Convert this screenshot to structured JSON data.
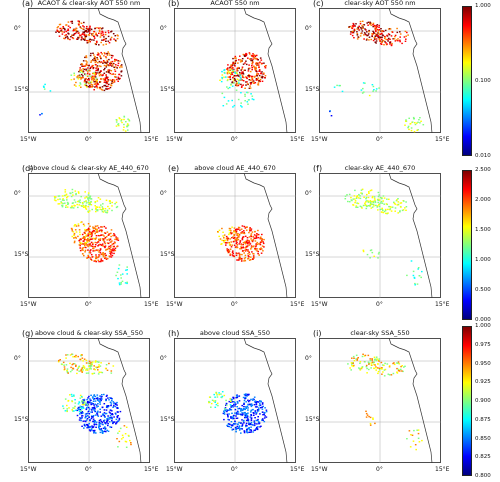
{
  "panels": [
    {
      "letter": "(a)",
      "title": "ACAOT & clear-sky AOT 550 nm",
      "row": 0,
      "col": 0
    },
    {
      "letter": "(b)",
      "title": "ACAOT 550 nm",
      "row": 0,
      "col": 1
    },
    {
      "letter": "(c)",
      "title": "clear-sky AOT 550 nm",
      "row": 0,
      "col": 2
    },
    {
      "letter": "(d)",
      "title": "above cloud & clear-sky AE_440_670",
      "row": 1,
      "col": 0
    },
    {
      "letter": "(e)",
      "title": "above cloud AE_440_670",
      "row": 1,
      "col": 1
    },
    {
      "letter": "(f)",
      "title": "clear-sky AE_440_670",
      "row": 1,
      "col": 2
    },
    {
      "letter": "(g)",
      "title": "above cloud & clear-sky SSA_550",
      "row": 2,
      "col": 0
    },
    {
      "letter": "(h)",
      "title": "above cloud SSA_550",
      "row": 2,
      "col": 1
    },
    {
      "letter": "(i)",
      "title": "clear-sky SSA_550",
      "row": 2,
      "col": 2
    }
  ],
  "axes": {
    "lat_labels": [
      "0°",
      "15°S"
    ],
    "lon_labels": [
      "15°W",
      "0°",
      "15°E"
    ]
  },
  "colorbars": [
    {
      "ticks": [
        "1.000",
        "0.100",
        "0.010"
      ],
      "scale": "log"
    },
    {
      "ticks": [
        "2.500",
        "2.000",
        "1.500",
        "1.000",
        "0.500",
        "0.000"
      ],
      "scale": "linear"
    },
    {
      "ticks": [
        "1.000",
        "0.975",
        "0.950",
        "0.925",
        "0.900",
        "0.875",
        "0.850",
        "0.825",
        "0.800"
      ],
      "scale": "linear"
    }
  ],
  "colormap": [
    "#00007f",
    "#0000ff",
    "#007fff",
    "#00ffff",
    "#7fff7f",
    "#ffff00",
    "#ff7f00",
    "#ff0000",
    "#7f0000"
  ]
}
